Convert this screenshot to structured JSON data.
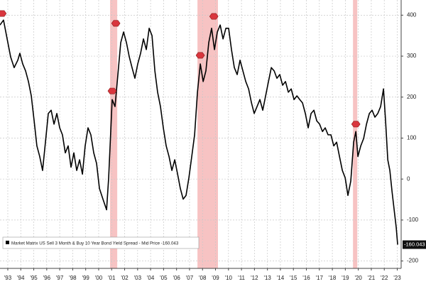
{
  "chart_data": {
    "type": "line",
    "x": [
      1992.4,
      1992.67,
      1992.95,
      1993.22,
      1993.49,
      1993.77,
      1993.93,
      1994.15,
      1994.37,
      1994.59,
      1994.81,
      1995.03,
      1995.24,
      1995.46,
      1995.68,
      1995.9,
      1996.12,
      1996.34,
      1996.56,
      1996.78,
      1997.0,
      1997.21,
      1997.43,
      1997.65,
      1997.87,
      1998.09,
      1998.31,
      1998.53,
      1998.75,
      1998.96,
      1999.18,
      1999.4,
      1999.62,
      1999.84,
      2000.06,
      2000.33,
      2000.61,
      2000.77,
      2000.93,
      2001.04,
      2001.26,
      2001.48,
      2001.7,
      2001.92,
      2002.14,
      2002.36,
      2002.57,
      2002.79,
      2003.01,
      2003.23,
      2003.45,
      2003.67,
      2003.89,
      2004.11,
      2004.33,
      2004.54,
      2004.76,
      2004.98,
      2005.2,
      2005.42,
      2005.64,
      2005.86,
      2006.08,
      2006.29,
      2006.51,
      2006.73,
      2006.95,
      2007.17,
      2007.39,
      2007.61,
      2007.83,
      2008.05,
      2008.26,
      2008.48,
      2008.7,
      2008.92,
      2009.14,
      2009.36,
      2009.58,
      2009.8,
      2010.01,
      2010.23,
      2010.45,
      2010.67,
      2010.89,
      2011.11,
      2011.33,
      2011.55,
      2011.77,
      2011.98,
      2012.2,
      2012.42,
      2012.64,
      2012.86,
      2013.08,
      2013.3,
      2013.52,
      2013.73,
      2013.95,
      2014.17,
      2014.39,
      2014.61,
      2014.83,
      2015.05,
      2015.27,
      2015.49,
      2015.7,
      2015.92,
      2016.14,
      2016.36,
      2016.58,
      2016.8,
      2017.02,
      2017.24,
      2017.45,
      2017.67,
      2017.89,
      2018.11,
      2018.33,
      2018.55,
      2018.77,
      2018.99,
      2019.2,
      2019.42,
      2019.64,
      2019.81,
      2019.97,
      2020.19,
      2020.41,
      2020.63,
      2020.85,
      2021.06,
      2021.28,
      2021.5,
      2021.72,
      2021.94,
      2022.1,
      2022.27,
      2022.43,
      2022.6,
      2022.76,
      2022.92,
      2023.03
    ],
    "series": [
      {
        "name": "Market Matrix US Sell 3 Month & Buy 10 Year Bond Yield Spread - Mid Price",
        "color": "#000000",
        "values": [
          376,
          388,
          342,
          298,
          272,
          290,
          307,
          281,
          264,
          238,
          203,
          142,
          81,
          55,
          21,
          90,
          160,
          168,
          134,
          160,
          125,
          108,
          64,
          81,
          29,
          64,
          21,
          47,
          12,
          81,
          125,
          108,
          64,
          38,
          -23,
          -49,
          -75,
          3,
          116,
          194,
          177,
          255,
          333,
          359,
          333,
          298,
          272,
          246,
          281,
          307,
          342,
          316,
          368,
          350,
          264,
          212,
          177,
          125,
          81,
          55,
          21,
          47,
          12,
          -23,
          -49,
          -40,
          3,
          55,
          108,
          212,
          281,
          238,
          264,
          333,
          368,
          316,
          359,
          376,
          342,
          368,
          368,
          316,
          272,
          255,
          290,
          264,
          238,
          220,
          186,
          160,
          177,
          194,
          168,
          203,
          238,
          272,
          264,
          246,
          255,
          229,
          238,
          212,
          220,
          194,
          203,
          194,
          186,
          160,
          125,
          160,
          168,
          142,
          134,
          116,
          125,
          108,
          108,
          81,
          90,
          55,
          21,
          3,
          -40,
          -5,
          90,
          116,
          55,
          81,
          99,
          134,
          160,
          168,
          151,
          160,
          177,
          220,
          142,
          47,
          21,
          -31,
          -75,
          -118,
          -160.043
        ]
      }
    ],
    "markers": {
      "color": "#d9363e",
      "x": [
        1992.56,
        2001.32,
        2001.04,
        2007.83,
        2008.87,
        2019.81
      ],
      "values": [
        404,
        380,
        215,
        302,
        397,
        134
      ]
    },
    "shaded_ranges": {
      "color": "#f6b8b8",
      "x": [
        [
          2000.88,
          2001.43
        ],
        [
          2007.61,
          2009.19
        ],
        [
          2019.59,
          2019.92
        ]
      ]
    },
    "xlim": [
      1992.4,
      2023.3
    ],
    "ylim": [
      -218,
      437
    ],
    "xticks": [
      {
        "value": 1993,
        "label": "'93"
      },
      {
        "value": 1994,
        "label": "'94"
      },
      {
        "value": 1995,
        "label": "'95"
      },
      {
        "value": 1996,
        "label": "'96"
      },
      {
        "value": 1997,
        "label": "'97"
      },
      {
        "value": 1998,
        "label": "'98"
      },
      {
        "value": 1999,
        "label": "'99"
      },
      {
        "value": 2000,
        "label": "'00"
      },
      {
        "value": 2001,
        "label": "'01"
      },
      {
        "value": 2002,
        "label": "'02"
      },
      {
        "value": 2003,
        "label": "'03"
      },
      {
        "value": 2004,
        "label": "'04"
      },
      {
        "value": 2005,
        "label": "'05"
      },
      {
        "value": 2006,
        "label": "'06"
      },
      {
        "value": 2007,
        "label": "'07"
      },
      {
        "value": 2008,
        "label": "'08"
      },
      {
        "value": 2009,
        "label": "'09"
      },
      {
        "value": 2010,
        "label": "'10"
      },
      {
        "value": 2011,
        "label": "'11"
      },
      {
        "value": 2012,
        "label": "'12"
      },
      {
        "value": 2013,
        "label": "'13"
      },
      {
        "value": 2014,
        "label": "'14"
      },
      {
        "value": 2015,
        "label": "'15"
      },
      {
        "value": 2016,
        "label": "'16"
      },
      {
        "value": 2017,
        "label": "'17"
      },
      {
        "value": 2018,
        "label": "'18"
      },
      {
        "value": 2019,
        "label": "'19"
      },
      {
        "value": 2020,
        "label": "'20"
      },
      {
        "value": 2021,
        "label": "'21"
      },
      {
        "value": 2022,
        "label": "'22"
      },
      {
        "value": 2023,
        "label": "'23"
      }
    ],
    "yticks": [
      400,
      300,
      200,
      100,
      0,
      -100,
      -200
    ],
    "grid": true
  }
}
